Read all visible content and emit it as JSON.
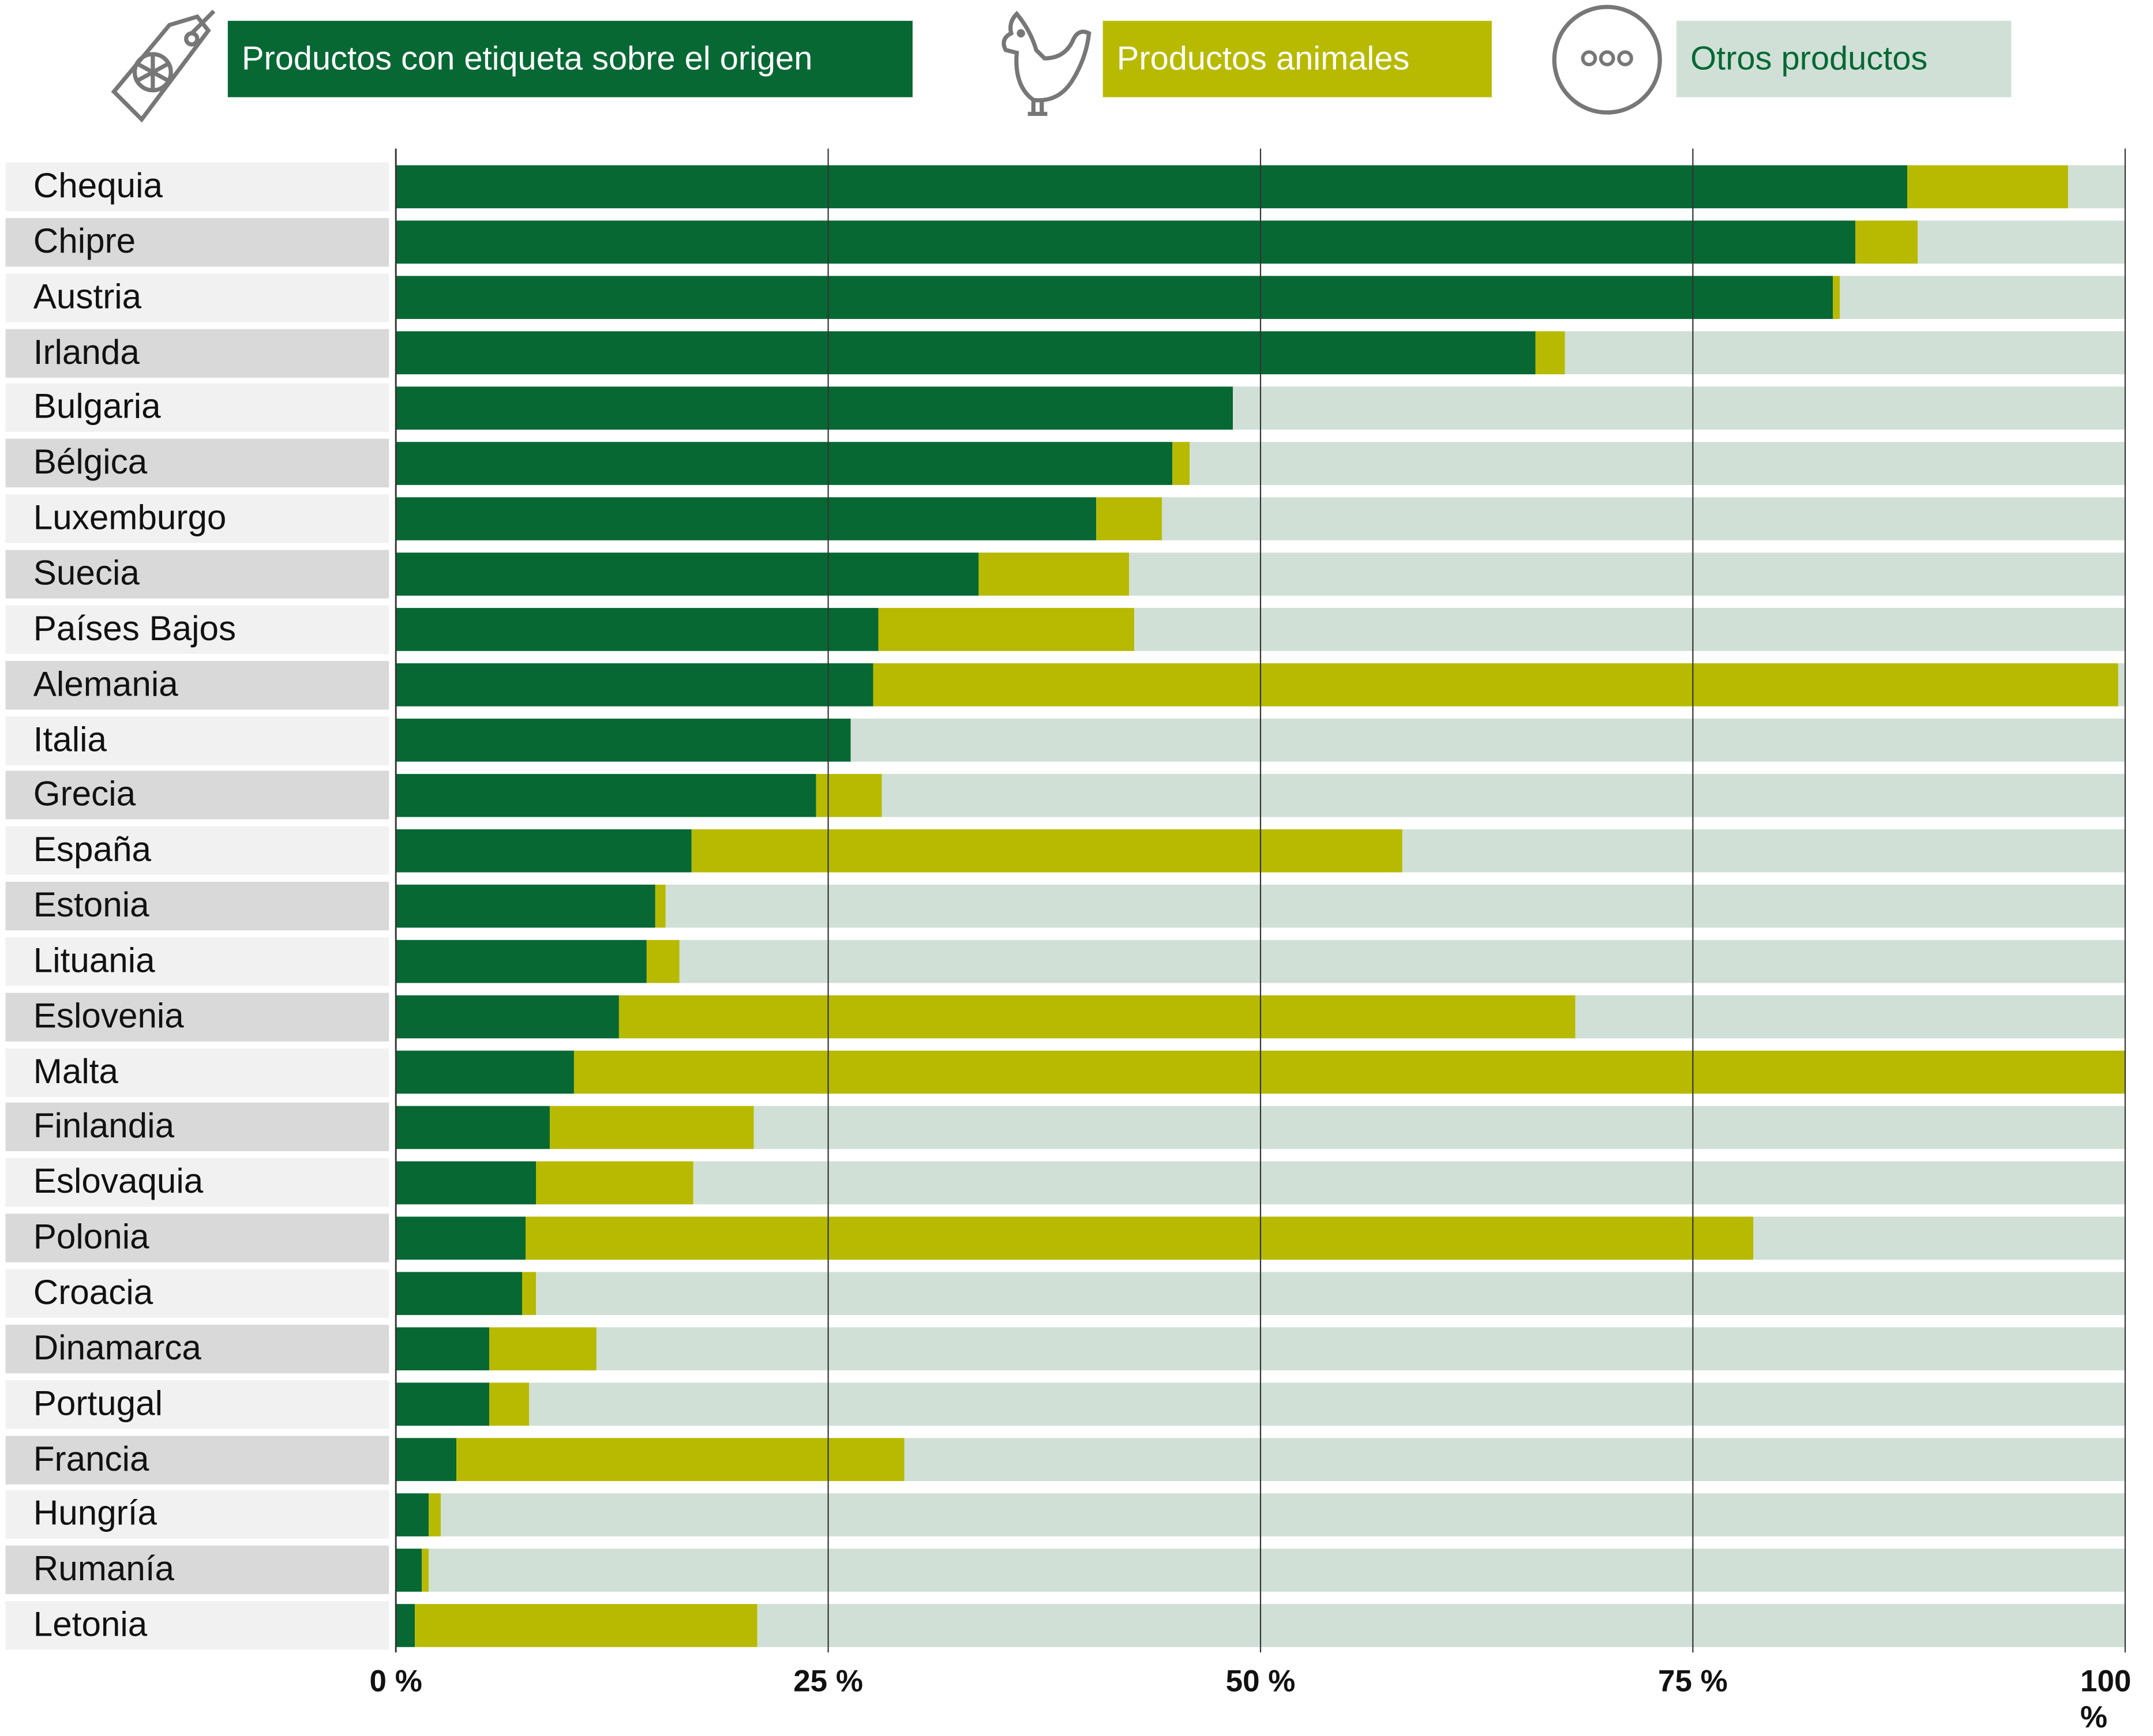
{
  "legend": [
    {
      "label": "Productos con etiqueta sobre el origen",
      "icon": "globe-tag-icon",
      "color": "#076834",
      "text_color": "#ffffff"
    },
    {
      "label": "Productos animales",
      "icon": "chicken-icon",
      "color": "#b7ba00",
      "text_color": "#ffffff"
    },
    {
      "label": "Otros productos",
      "icon": "more-dots-icon",
      "color": "#d0e0d6",
      "text_color": "#076834"
    }
  ],
  "chart_data": {
    "type": "bar",
    "orientation": "horizontal",
    "stacked": true,
    "title": "",
    "xlabel": "",
    "ylabel": "",
    "xlim": [
      0,
      100
    ],
    "x_ticks": [
      "0 %",
      "25 %",
      "50 %",
      "75 %",
      "100 %"
    ],
    "x_tick_values": [
      0,
      25,
      50,
      75,
      100
    ],
    "grid": true,
    "legend_position": "top",
    "categories": [
      "Chequia",
      "Chipre",
      "Austria",
      "Irlanda",
      "Bulgaria",
      "Bélgica",
      "Luxemburgo",
      "Suecia",
      "Países Bajos",
      "Alemania",
      "Italia",
      "Grecia",
      "España",
      "Estonia",
      "Lituania",
      "Eslovenia",
      "Malta",
      "Finlandia",
      "Eslovaquia",
      "Polonia",
      "Croacia",
      "Dinamarca",
      "Portugal",
      "Francia",
      "Hungría",
      "Rumanía",
      "Letonia"
    ],
    "series": [
      {
        "name": "Productos con etiqueta sobre el origen",
        "color": "#076834",
        "values": [
          87.4,
          84.4,
          83.1,
          65.9,
          48.4,
          44.9,
          40.5,
          33.7,
          27.9,
          27.6,
          26.3,
          24.3,
          17.1,
          15.0,
          14.5,
          12.9,
          10.3,
          8.9,
          8.1,
          7.5,
          7.3,
          5.4,
          5.4,
          3.5,
          1.9,
          1.5,
          1.1
        ]
      },
      {
        "name": "Productos animales",
        "color": "#b7ba00",
        "values": [
          9.3,
          3.6,
          0.4,
          1.7,
          0.0,
          1.0,
          3.8,
          8.7,
          14.8,
          72.0,
          0.0,
          3.8,
          41.1,
          0.6,
          1.9,
          55.3,
          89.7,
          11.8,
          9.1,
          71.0,
          0.8,
          6.2,
          2.3,
          25.9,
          0.7,
          0.4,
          19.8
        ]
      },
      {
        "name": "Otros productos",
        "color": "#d0e0d6",
        "values": [
          3.3,
          12.0,
          16.5,
          32.4,
          51.6,
          54.1,
          55.7,
          57.6,
          57.3,
          0.4,
          73.7,
          71.9,
          41.8,
          84.4,
          83.6,
          31.8,
          0.0,
          79.3,
          82.8,
          21.5,
          91.9,
          88.4,
          92.3,
          70.6,
          97.4,
          98.1,
          79.1
        ]
      }
    ]
  },
  "row_backgrounds": [
    "#f1f1f1",
    "#d9d9d9"
  ]
}
